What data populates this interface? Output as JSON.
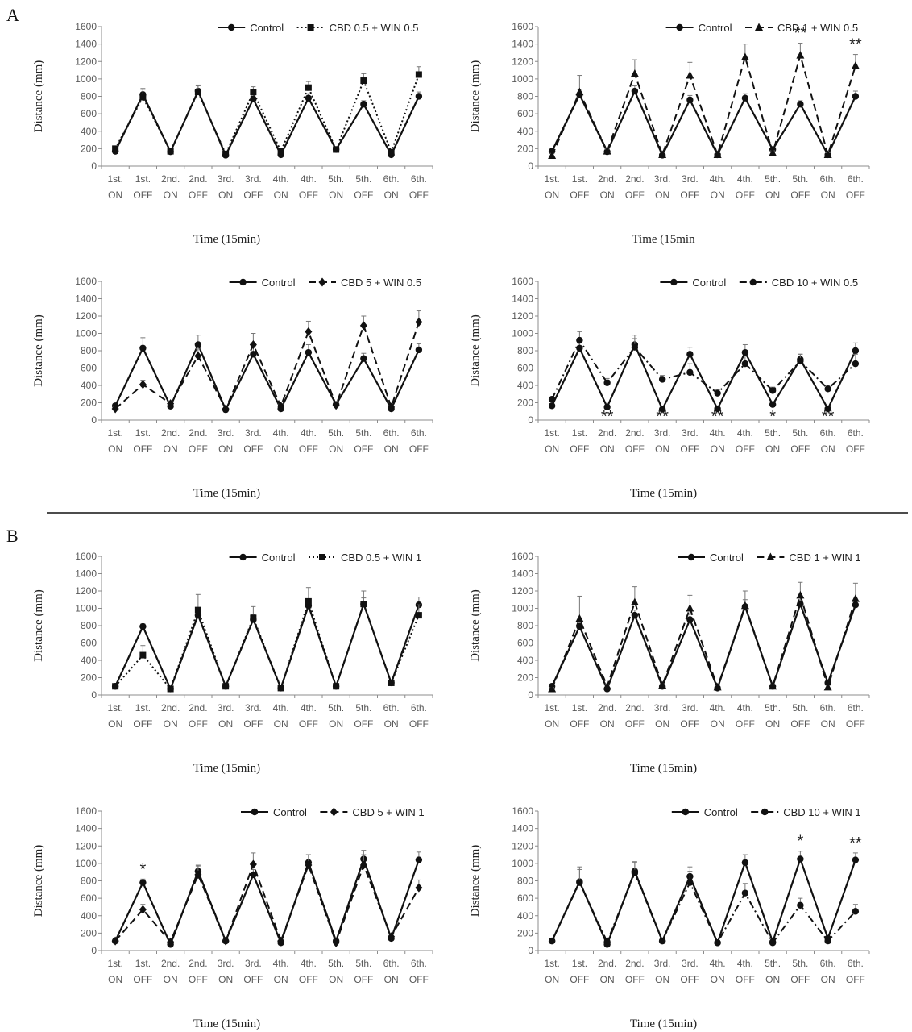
{
  "figure": {
    "section_a": "A",
    "section_b": "B"
  },
  "chart_data": [
    {
      "type": "line",
      "section": "A",
      "ylabel": "Distance (mm)",
      "xlabel": "Time (15min)",
      "ylim": [
        0,
        1600
      ],
      "yticks": [
        0,
        200,
        400,
        600,
        800,
        1000,
        1200,
        1400,
        1600
      ],
      "categories": [
        [
          "1st.",
          "ON"
        ],
        [
          "1st.",
          "OFF"
        ],
        [
          "2nd.",
          "ON"
        ],
        [
          "2nd.",
          "OFF"
        ],
        [
          "3rd.",
          "ON"
        ],
        [
          "3rd.",
          "OFF"
        ],
        [
          "4th.",
          "ON"
        ],
        [
          "4th.",
          "OFF"
        ],
        [
          "5th.",
          "ON"
        ],
        [
          "5th.",
          "OFF"
        ],
        [
          "6th.",
          "ON"
        ],
        [
          "6th.",
          "OFF"
        ]
      ],
      "series": [
        {
          "name": "Control",
          "marker": "circle",
          "dash": "solid",
          "values": [
            170,
            820,
            165,
            860,
            125,
            770,
            130,
            780,
            190,
            710,
            130,
            800
          ],
          "err": [
            20,
            60,
            20,
            60,
            20,
            50,
            20,
            50,
            20,
            40,
            20,
            50
          ]
        },
        {
          "name": "CBD 0.5 + WIN 0.5",
          "marker": "square",
          "dash": "dotted",
          "values": [
            200,
            790,
            170,
            850,
            140,
            850,
            170,
            900,
            190,
            980,
            160,
            1050
          ],
          "err": [
            25,
            100,
            20,
            80,
            25,
            60,
            30,
            70,
            20,
            80,
            25,
            90
          ]
        }
      ],
      "annotations": []
    },
    {
      "type": "line",
      "section": "A",
      "ylabel": "Distance (mm)",
      "xlabel": "Time (15min",
      "ylim": [
        0,
        1600
      ],
      "yticks": [
        0,
        200,
        400,
        600,
        800,
        1000,
        1200,
        1400,
        1600
      ],
      "categories": [
        [
          "1st.",
          "ON"
        ],
        [
          "1st.",
          "OFF"
        ],
        [
          "2nd.",
          "ON"
        ],
        [
          "2nd.",
          "OFF"
        ],
        [
          "3rd.",
          "ON"
        ],
        [
          "3rd.",
          "OFF"
        ],
        [
          "4th.",
          "ON"
        ],
        [
          "4th.",
          "OFF"
        ],
        [
          "5th.",
          "ON"
        ],
        [
          "5th.",
          "OFF"
        ],
        [
          "6th.",
          "ON"
        ],
        [
          "6th.",
          "OFF"
        ]
      ],
      "series": [
        {
          "name": "Control",
          "marker": "circle",
          "dash": "solid",
          "values": [
            170,
            820,
            165,
            860,
            125,
            760,
            130,
            780,
            190,
            710,
            130,
            800
          ],
          "err": [
            20,
            60,
            20,
            60,
            20,
            50,
            20,
            50,
            20,
            40,
            20,
            60
          ]
        },
        {
          "name": "CBD 1 + WIN 0.5",
          "marker": "triangle",
          "dash": "dashed",
          "values": [
            120,
            850,
            170,
            1060,
            130,
            1040,
            130,
            1250,
            150,
            1270,
            130,
            1150
          ],
          "err": [
            25,
            190,
            25,
            160,
            25,
            150,
            25,
            150,
            25,
            140,
            25,
            130
          ]
        }
      ],
      "annotations": [
        {
          "index": 9,
          "text": "**"
        },
        {
          "index": 11,
          "text": "**"
        }
      ]
    },
    {
      "type": "line",
      "section": "A",
      "ylabel": "Distance (mm)",
      "xlabel": "Time (15min)",
      "ylim": [
        0,
        1600
      ],
      "yticks": [
        0,
        200,
        400,
        600,
        800,
        1000,
        1200,
        1400,
        1600
      ],
      "categories": [
        [
          "1st.",
          "ON"
        ],
        [
          "1st.",
          "OFF"
        ],
        [
          "2nd.",
          "ON"
        ],
        [
          "2nd.",
          "OFF"
        ],
        [
          "3rd.",
          "ON"
        ],
        [
          "3rd.",
          "OFF"
        ],
        [
          "4th.",
          "ON"
        ],
        [
          "4th.",
          "OFF"
        ],
        [
          "5th.",
          "ON"
        ],
        [
          "5th.",
          "OFF"
        ],
        [
          "6th.",
          "ON"
        ],
        [
          "6th.",
          "OFF"
        ]
      ],
      "series": [
        {
          "name": "Control",
          "marker": "circle",
          "dash": "solid",
          "values": [
            165,
            830,
            160,
            870,
            120,
            760,
            130,
            780,
            180,
            710,
            130,
            810
          ],
          "err": [
            20,
            120,
            20,
            110,
            20,
            90,
            20,
            90,
            20,
            60,
            20,
            70
          ]
        },
        {
          "name": "CBD 5 + WIN 0.5",
          "marker": "diamond",
          "dash": "dashed",
          "values": [
            130,
            410,
            190,
            740,
            130,
            870,
            160,
            1020,
            170,
            1090,
            150,
            1130
          ],
          "err": [
            20,
            50,
            25,
            80,
            20,
            130,
            25,
            120,
            20,
            110,
            20,
            130
          ]
        }
      ],
      "annotations": []
    },
    {
      "type": "line",
      "section": "A",
      "ylabel": "Distance (mm)",
      "xlabel": "Time (15min)",
      "ylim": [
        0,
        1600
      ],
      "yticks": [
        0,
        200,
        400,
        600,
        800,
        1000,
        1200,
        1400,
        1600
      ],
      "categories": [
        [
          "1st.",
          "ON"
        ],
        [
          "1st.",
          "OFF"
        ],
        [
          "2nd.",
          "ON"
        ],
        [
          "2nd.",
          "OFF"
        ],
        [
          "3rd.",
          "ON"
        ],
        [
          "3rd.",
          "OFF"
        ],
        [
          "4th.",
          "ON"
        ],
        [
          "4th.",
          "OFF"
        ],
        [
          "5th.",
          "ON"
        ],
        [
          "5th.",
          "OFF"
        ],
        [
          "6th.",
          "ON"
        ],
        [
          "6th.",
          "OFF"
        ]
      ],
      "series": [
        {
          "name": "Control",
          "marker": "circle",
          "dash": "solid",
          "values": [
            165,
            830,
            150,
            870,
            125,
            760,
            130,
            780,
            180,
            700,
            130,
            800
          ],
          "err": [
            20,
            110,
            20,
            110,
            20,
            80,
            20,
            90,
            20,
            60,
            20,
            90
          ]
        },
        {
          "name": "CBD 10 + WIN 0.5",
          "marker": "circle",
          "dash": "dashdot",
          "values": [
            240,
            920,
            430,
            840,
            470,
            550,
            310,
            650,
            340,
            680,
            360,
            650
          ],
          "err": [
            25,
            100,
            50,
            100,
            45,
            100,
            40,
            90,
            40,
            80,
            40,
            110
          ]
        }
      ],
      "annotations": [
        {
          "index": 2,
          "text": "**"
        },
        {
          "index": 4,
          "text": "**"
        },
        {
          "index": 6,
          "text": "**"
        },
        {
          "index": 8,
          "text": "*"
        },
        {
          "index": 10,
          "text": "**"
        }
      ]
    },
    {
      "type": "line",
      "section": "B",
      "ylabel": "Distance (mm)",
      "xlabel": "Time (15min)",
      "ylim": [
        0,
        1600
      ],
      "yticks": [
        0,
        200,
        400,
        600,
        800,
        1000,
        1200,
        1400,
        1600
      ],
      "categories": [
        [
          "1st.",
          "ON"
        ],
        [
          "1st.",
          "OFF"
        ],
        [
          "2nd.",
          "ON"
        ],
        [
          "2nd.",
          "OFF"
        ],
        [
          "3rd.",
          "ON"
        ],
        [
          "3rd.",
          "OFF"
        ],
        [
          "4th.",
          "ON"
        ],
        [
          "4th.",
          "OFF"
        ],
        [
          "5th.",
          "ON"
        ],
        [
          "5th.",
          "OFF"
        ],
        [
          "6th.",
          "ON"
        ],
        [
          "6th.",
          "OFF"
        ]
      ],
      "series": [
        {
          "name": "Control",
          "marker": "circle",
          "dash": "solid",
          "values": [
            100,
            790,
            70,
            920,
            100,
            870,
            80,
            1030,
            100,
            1050,
            140,
            1040
          ],
          "err": [
            15,
            30,
            15,
            60,
            15,
            60,
            15,
            80,
            15,
            70,
            15,
            90
          ]
        },
        {
          "name": "CBD 0.5 + WIN 1",
          "marker": "square",
          "dash": "dotted",
          "values": [
            100,
            460,
            70,
            980,
            100,
            890,
            80,
            1080,
            100,
            1050,
            140,
            920
          ],
          "err": [
            15,
            110,
            20,
            180,
            15,
            130,
            20,
            160,
            15,
            150,
            25,
            120
          ]
        }
      ],
      "annotations": []
    },
    {
      "type": "line",
      "section": "B",
      "ylabel": "Distance (mm)",
      "xlabel": "Time (15min)",
      "ylim": [
        0,
        1600
      ],
      "yticks": [
        0,
        200,
        400,
        600,
        800,
        1000,
        1200,
        1400,
        1600
      ],
      "categories": [
        [
          "1st.",
          "ON"
        ],
        [
          "1st.",
          "OFF"
        ],
        [
          "2nd.",
          "ON"
        ],
        [
          "2nd.",
          "OFF"
        ],
        [
          "3rd.",
          "ON"
        ],
        [
          "3rd.",
          "OFF"
        ],
        [
          "4th.",
          "ON"
        ],
        [
          "4th.",
          "OFF"
        ],
        [
          "5th.",
          "ON"
        ],
        [
          "5th.",
          "OFF"
        ],
        [
          "6th.",
          "ON"
        ],
        [
          "6th.",
          "OFF"
        ]
      ],
      "series": [
        {
          "name": "Control",
          "marker": "circle",
          "dash": "solid",
          "values": [
            100,
            790,
            70,
            920,
            100,
            870,
            80,
            1020,
            100,
            1050,
            140,
            1040
          ],
          "err": [
            15,
            60,
            15,
            60,
            15,
            60,
            15,
            80,
            15,
            70,
            15,
            90
          ]
        },
        {
          "name": "CBD 1 + WIN 1",
          "marker": "triangle",
          "dash": "dashed",
          "values": [
            70,
            880,
            100,
            1070,
            110,
            1000,
            90,
            1030,
            100,
            1150,
            90,
            1110
          ],
          "err": [
            15,
            260,
            20,
            180,
            20,
            150,
            20,
            170,
            20,
            150,
            20,
            180
          ]
        }
      ],
      "annotations": []
    },
    {
      "type": "line",
      "section": "B",
      "ylabel": "Distance (mm)",
      "xlabel": "Time (15min)",
      "ylim": [
        0,
        1600
      ],
      "yticks": [
        0,
        200,
        400,
        600,
        800,
        1000,
        1200,
        1400,
        1600
      ],
      "categories": [
        [
          "1st.",
          "ON"
        ],
        [
          "1st.",
          "OFF"
        ],
        [
          "2nd.",
          "ON"
        ],
        [
          "2nd.",
          "OFF"
        ],
        [
          "3rd.",
          "ON"
        ],
        [
          "3rd.",
          "OFF"
        ],
        [
          "4th.",
          "ON"
        ],
        [
          "4th.",
          "OFF"
        ],
        [
          "5th.",
          "ON"
        ],
        [
          "5th.",
          "OFF"
        ],
        [
          "6th.",
          "ON"
        ],
        [
          "6th.",
          "OFF"
        ]
      ],
      "series": [
        {
          "name": "Control",
          "marker": "circle",
          "dash": "solid",
          "values": [
            110,
            780,
            70,
            910,
            110,
            870,
            90,
            1010,
            110,
            1050,
            140,
            1040
          ],
          "err": [
            15,
            40,
            15,
            70,
            15,
            60,
            15,
            90,
            15,
            100,
            15,
            90
          ]
        },
        {
          "name": "CBD 5 + WIN 1",
          "marker": "diamond",
          "dash": "dashed",
          "values": [
            110,
            470,
            100,
            870,
            110,
            990,
            110,
            980,
            90,
            980,
            160,
            720
          ],
          "err": [
            15,
            60,
            20,
            100,
            15,
            130,
            20,
            120,
            15,
            120,
            25,
            90
          ]
        }
      ],
      "annotations": [
        {
          "index": 1,
          "text": "*"
        }
      ]
    },
    {
      "type": "line",
      "section": "B",
      "ylabel": "Distance (mm)",
      "xlabel": "Time (15min)",
      "ylim": [
        0,
        1600
      ],
      "yticks": [
        0,
        200,
        400,
        600,
        800,
        1000,
        1200,
        1400,
        1600
      ],
      "categories": [
        [
          "1st.",
          "ON"
        ],
        [
          "1st.",
          "OFF"
        ],
        [
          "2nd.",
          "ON"
        ],
        [
          "2nd.",
          "OFF"
        ],
        [
          "3rd.",
          "ON"
        ],
        [
          "3rd.",
          "OFF"
        ],
        [
          "4th.",
          "ON"
        ],
        [
          "4th.",
          "OFF"
        ],
        [
          "5th.",
          "ON"
        ],
        [
          "5th.",
          "OFF"
        ],
        [
          "6th.",
          "ON"
        ],
        [
          "6th.",
          "OFF"
        ]
      ],
      "series": [
        {
          "name": "Control",
          "marker": "circle",
          "dash": "solid",
          "values": [
            110,
            790,
            70,
            910,
            110,
            850,
            90,
            1010,
            100,
            1050,
            140,
            1040
          ],
          "err": [
            15,
            170,
            15,
            100,
            15,
            110,
            15,
            90,
            15,
            90,
            15,
            80
          ]
        },
        {
          "name": "CBD 10 + WIN 1",
          "marker": "circle",
          "dash": "dashdot",
          "values": [
            110,
            780,
            100,
            890,
            110,
            780,
            90,
            660,
            90,
            520,
            110,
            450
          ],
          "err": [
            15,
            150,
            20,
            130,
            15,
            130,
            20,
            110,
            15,
            80,
            20,
            80
          ]
        }
      ],
      "annotations": [
        {
          "index": 9,
          "text": "*"
        },
        {
          "index": 11,
          "text": "**"
        }
      ]
    }
  ]
}
